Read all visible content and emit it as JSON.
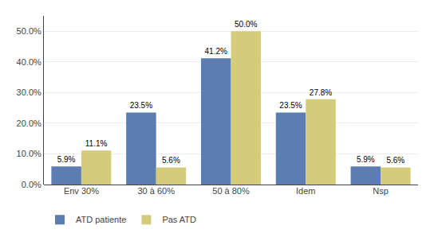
{
  "chart_data": {
    "type": "bar",
    "categories": [
      "Env 30%",
      "30 à 60%",
      "50 à 80%",
      "Idem",
      "Nsp"
    ],
    "series": [
      {
        "name": "ATD patiente",
        "color": "#5B7DB1",
        "values": [
          5.9,
          23.5,
          41.2,
          23.5,
          5.9
        ],
        "value_labels": [
          "5.9%",
          "23.5%",
          "41.2%",
          "23.5%",
          "5.9%"
        ]
      },
      {
        "name": "Pas ATD",
        "color": "#D4CC7A",
        "values": [
          11.1,
          5.6,
          50.0,
          27.8,
          5.6
        ],
        "value_labels": [
          "11.1%",
          "5.6%",
          "50.0%",
          "27.8%",
          "5.6%"
        ]
      }
    ],
    "ylim": [
      0,
      55
    ],
    "yticks": [
      {
        "value": 0,
        "label": "0.0%"
      },
      {
        "value": 10,
        "label": "10.0%"
      },
      {
        "value": 20,
        "label": "20.0%"
      },
      {
        "value": 30,
        "label": "30.0%"
      },
      {
        "value": 40,
        "label": "40.0%"
      },
      {
        "value": 50,
        "label": "50.0%"
      }
    ],
    "grid": true,
    "data_labels": true,
    "legend": "bottom"
  }
}
